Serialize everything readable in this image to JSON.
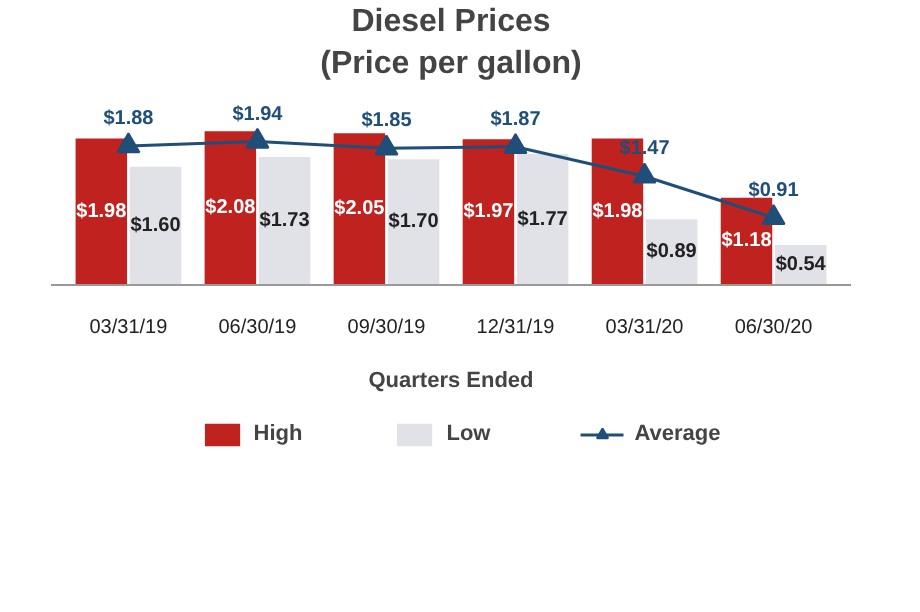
{
  "chart_data": {
    "type": "bar",
    "title": "Diesel Prices",
    "subtitle": "(Price per gallon)",
    "xlabel": "Quarters Ended",
    "categories": [
      "03/31/19",
      "06/30/19",
      "09/30/19",
      "12/31/19",
      "03/31/20",
      "06/30/20"
    ],
    "tick_labels": "x",
    "series": [
      {
        "name": "High",
        "color": "#c0221f",
        "values": [
          1.98,
          2.08,
          2.05,
          1.97,
          1.98,
          1.18
        ],
        "value_labels": [
          "$1.98",
          "$2.08",
          "$2.05",
          "$1.97",
          "$1.98",
          "$1.18"
        ]
      },
      {
        "name": "Low",
        "color": "#e1e1e8",
        "values": [
          1.6,
          1.73,
          1.7,
          1.77,
          0.89,
          0.54
        ],
        "value_labels": [
          "$1.60",
          "$1.73",
          "$1.70",
          "$1.77",
          "$0.89",
          "$0.54"
        ]
      },
      {
        "name": "Average",
        "type": "line",
        "color": "#1f4e79",
        "marker": "triangle",
        "values": [
          1.88,
          1.94,
          1.85,
          1.87,
          1.47,
          0.91
        ],
        "value_labels": [
          "$1.88",
          "$1.94",
          "$1.85",
          "$1.87",
          "$1.47",
          "$0.91"
        ]
      }
    ],
    "legend": "bottom"
  }
}
